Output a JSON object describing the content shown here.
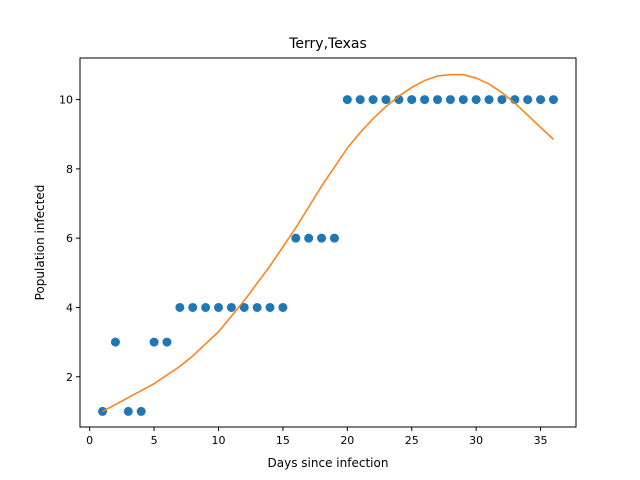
{
  "chart_data": {
    "type": "scatter",
    "title": "Terry,Texas",
    "xlabel": "Days since infection",
    "ylabel": "Population infected",
    "xlim": [
      -0.75,
      37.75
    ],
    "ylim": [
      0.55,
      11.2
    ],
    "xticks": [
      0,
      5,
      10,
      15,
      20,
      25,
      30,
      35
    ],
    "yticks": [
      2,
      4,
      6,
      8,
      10
    ],
    "grid": false,
    "series": [
      {
        "type": "scatter",
        "color": "#1f77b4",
        "x": [
          1,
          2,
          3,
          4,
          5,
          6,
          7,
          8,
          9,
          10,
          11,
          12,
          13,
          14,
          15,
          16,
          17,
          18,
          19,
          20,
          21,
          22,
          23,
          24,
          25,
          26,
          27,
          28,
          29,
          30,
          31,
          32,
          33,
          34,
          35,
          36
        ],
        "y": [
          1,
          3,
          1,
          1,
          3,
          3,
          4,
          4,
          4,
          4,
          4,
          4,
          4,
          4,
          4,
          6,
          6,
          6,
          6,
          10,
          10,
          10,
          10,
          10,
          10,
          10,
          10,
          10,
          10,
          10,
          10,
          10,
          10,
          10,
          10,
          10
        ]
      },
      {
        "type": "line",
        "color": "#ff7f0e",
        "x": [
          1,
          2,
          3,
          4,
          5,
          6,
          7,
          8,
          9,
          10,
          11,
          12,
          13,
          14,
          15,
          16,
          17,
          18,
          19,
          20,
          21,
          22,
          23,
          24,
          25,
          26,
          27,
          28,
          29,
          30,
          31,
          32,
          33,
          34,
          35,
          36
        ],
        "y": [
          1.0,
          1.2,
          1.4,
          1.6,
          1.8,
          2.05,
          2.3,
          2.6,
          2.95,
          3.3,
          3.75,
          4.2,
          4.7,
          5.2,
          5.75,
          6.3,
          6.9,
          7.5,
          8.05,
          8.6,
          9.05,
          9.45,
          9.8,
          10.1,
          10.35,
          10.55,
          10.68,
          10.72,
          10.72,
          10.62,
          10.45,
          10.2,
          9.9,
          9.55,
          9.2,
          8.85
        ]
      }
    ]
  }
}
